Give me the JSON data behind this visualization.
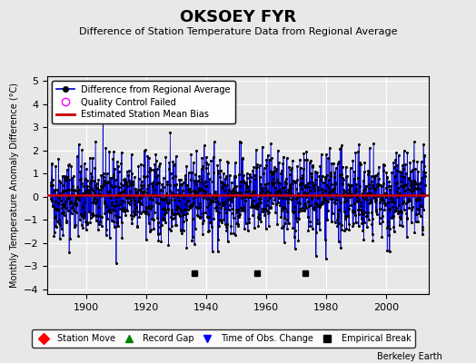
{
  "title": "OKSOEY FYR",
  "subtitle": "Difference of Station Temperature Data from Regional Average",
  "ylabel": "Monthly Temperature Anomaly Difference (°C)",
  "xlabel_ticks": [
    1900,
    1920,
    1940,
    1960,
    1980,
    2000
  ],
  "yticks": [
    -4,
    -3,
    -2,
    -1,
    0,
    1,
    2,
    3,
    4,
    5
  ],
  "ylim": [
    -4.2,
    5.2
  ],
  "xlim": [
    1887,
    2014
  ],
  "year_start": 1888,
  "year_end": 2013,
  "bias_value": 0.05,
  "empirical_breaks": [
    1936,
    1957,
    1973
  ],
  "bg_color": "#e8e8e8",
  "plot_bg_color": "#e8e8e8",
  "line_color": "#0000cc",
  "bias_color": "#cc0000",
  "seed": 42
}
